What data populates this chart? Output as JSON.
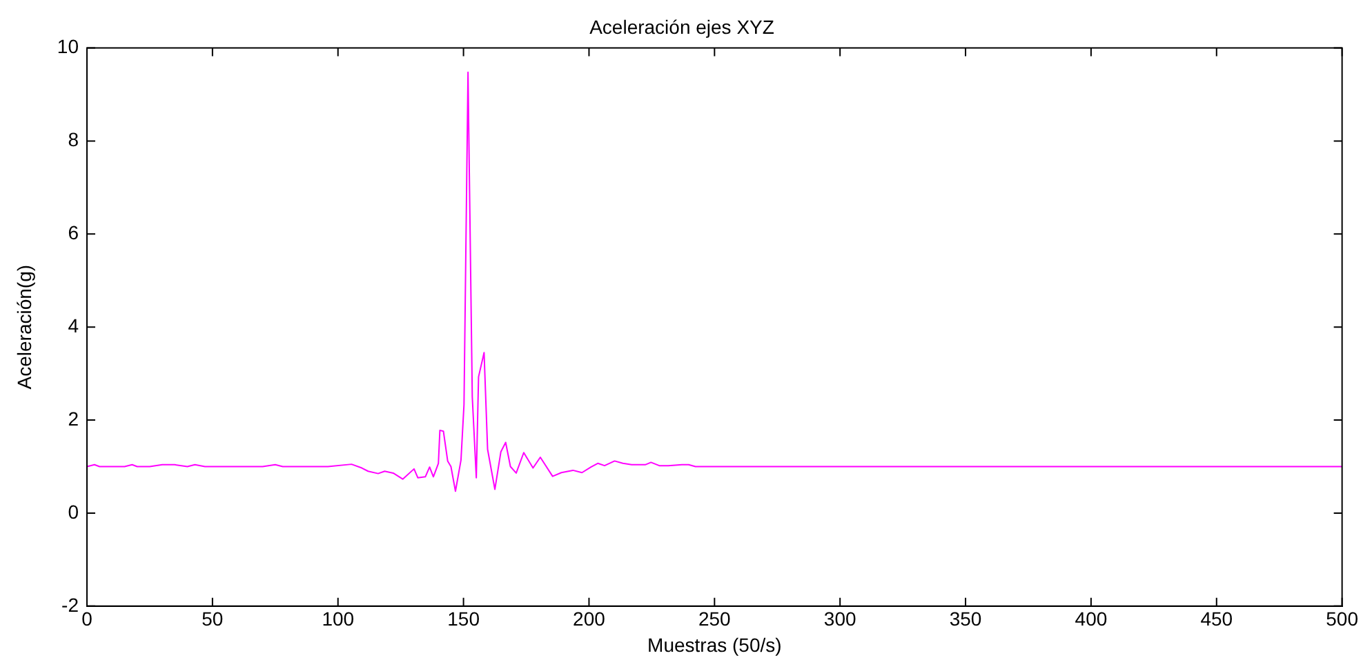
{
  "chart_data": {
    "type": "line",
    "title": "Aceleración ejes XYZ",
    "xlabel": "Muestras (50/s)",
    "ylabel": "Aceleración(g)",
    "xlim": [
      0,
      500
    ],
    "xticks": [
      0,
      50,
      100,
      150,
      200,
      250,
      300,
      350,
      400,
      450,
      500
    ],
    "ylim": [
      -2,
      10
    ],
    "yticks": [
      -2,
      0,
      2,
      4,
      6,
      8,
      10
    ],
    "grid": false,
    "legend": false,
    "marker": "none",
    "line_style": "solid",
    "series": [
      {
        "color": "#ff00ff",
        "x": [
          0,
          3,
          5,
          8,
          15,
          18,
          20,
          25,
          30,
          35,
          40,
          43,
          47,
          55,
          60,
          65,
          70,
          75,
          78,
          85,
          96,
          105.4,
          109.5,
          112,
          116,
          118.6,
          122,
          125.8,
          130.3,
          131.8,
          134.8,
          136.5,
          138,
          140,
          140.6,
          142,
          143.7,
          145,
          146.8,
          149,
          150.2,
          151.8,
          153.5,
          155.1,
          156,
          158.2,
          159.6,
          162.5,
          164.9,
          166.8,
          168.7,
          171,
          174,
          177.7,
          180.6,
          185.5,
          189,
          193.6,
          197.2,
          200.8,
          203.5,
          206.2,
          210.2,
          213.5,
          217,
          222.4,
          224.7,
          228,
          231.6,
          237,
          239.7,
          242.4,
          245,
          300,
          400,
          500
        ],
        "values": [
          1.0,
          1.04,
          1.0,
          1.0,
          1.0,
          1.04,
          1.0,
          1.0,
          1.04,
          1.04,
          1.0,
          1.04,
          1.0,
          1.0,
          1.0,
          1.0,
          1.0,
          1.04,
          1.0,
          1.0,
          1.0,
          1.05,
          0.97,
          0.9,
          0.85,
          0.9,
          0.86,
          0.73,
          0.95,
          0.76,
          0.78,
          0.99,
          0.78,
          1.07,
          1.78,
          1.76,
          1.12,
          1.0,
          0.47,
          1.14,
          2.33,
          9.48,
          2.5,
          0.76,
          2.93,
          3.45,
          1.37,
          0.51,
          1.32,
          1.52,
          1.0,
          0.86,
          1.3,
          0.97,
          1.2,
          0.79,
          0.87,
          0.92,
          0.87,
          0.99,
          1.07,
          1.02,
          1.12,
          1.07,
          1.04,
          1.04,
          1.09,
          1.02,
          1.02,
          1.04,
          1.04,
          1.0,
          1.0,
          1.0,
          1.0,
          1.0
        ]
      }
    ]
  }
}
